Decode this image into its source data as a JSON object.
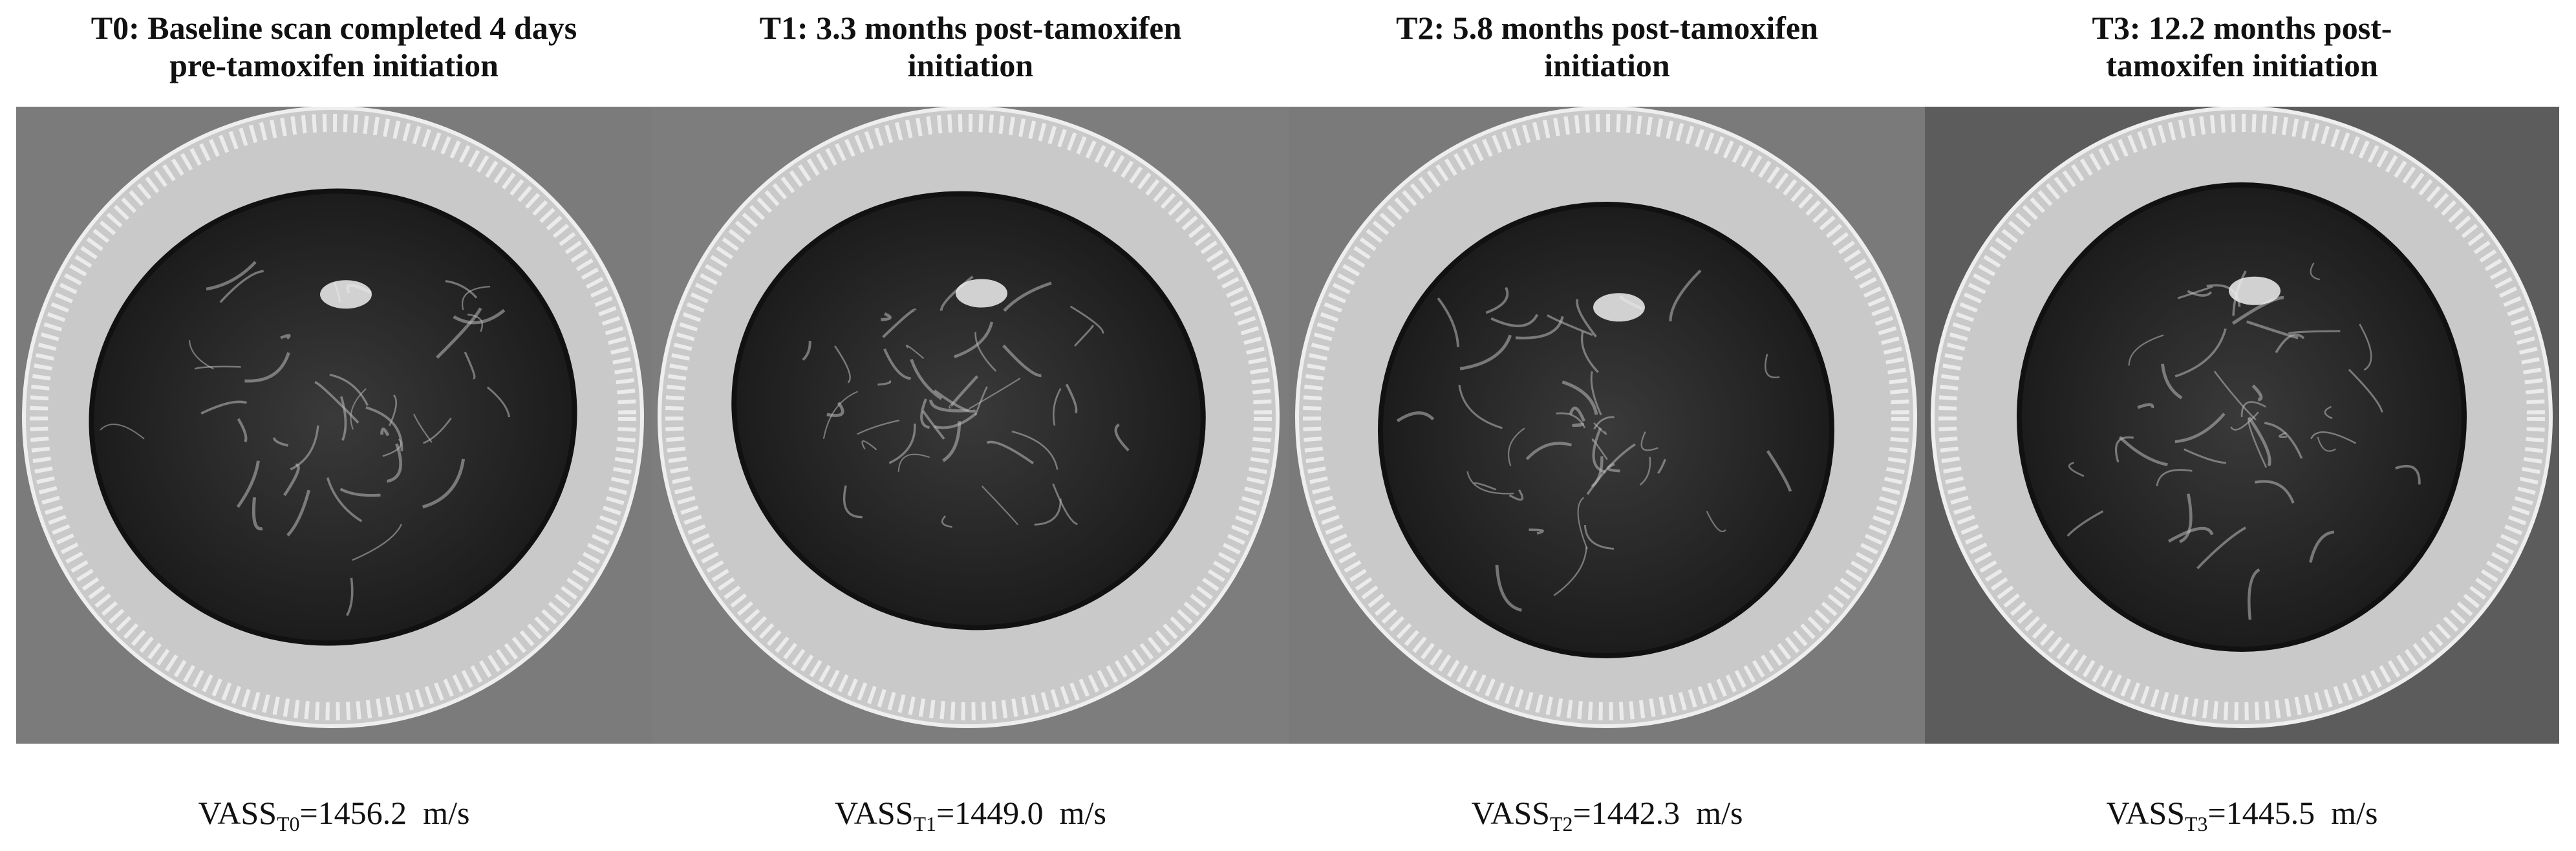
{
  "panels": [
    {
      "title_lines": [
        "T0: Baseline scan completed 4 days",
        "pre-tamoxifen initiation"
      ],
      "caption": {
        "prefix": "VASS",
        "subscript": "T0",
        "value": "=1456.2  m/s"
      }
    },
    {
      "title_lines": [
        "T1: 3.3 months post-tamoxifen",
        "initiation"
      ],
      "caption": {
        "prefix": "VASS",
        "subscript": "T1",
        "value": "=1449.0  m/s"
      }
    },
    {
      "title_lines": [
        "T2: 5.8 months post-tamoxifen",
        "initiation"
      ],
      "caption": {
        "prefix": "VASS",
        "subscript": "T2",
        "value": "=1442.3  m/s"
      }
    },
    {
      "title_lines": [
        "T3: 12.2 months post-",
        "tamoxifen initiation"
      ],
      "caption": {
        "prefix": "VASS",
        "subscript": "T3",
        "value": "=1445.5  m/s"
      }
    }
  ]
}
